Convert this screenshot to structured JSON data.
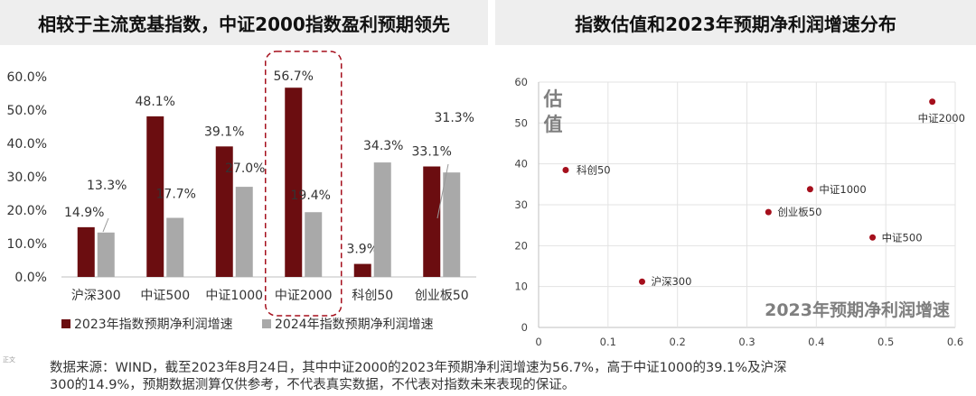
{
  "left_title": "相较于主流宽基指数，中证2000指数盈利预期领先",
  "right_title": "指数估值和2023年预期净利润增速分布",
  "footnote_line1": "数据来源：WIND，截至2023年8月24日，其中中证2000的2023年预期净利润增速为56.7%，高于中证1000的39.1%及沪深",
  "footnote_line2": "300的14.9%，预期数据测算仅供参考，不代表真实数据，不代表对指数未来表现的保证。",
  "side_mark": "正文",
  "colors": {
    "series1": "#6b0d10",
    "series2": "#a9a9a9",
    "dot": "#a50f1c",
    "highlight": "#a50f1c"
  },
  "chart_data": [
    {
      "type": "bar",
      "title": "相较于主流宽基指数，中证2000指数盈利预期领先",
      "categories": [
        "沪深300",
        "中证500",
        "中证1000",
        "中证2000",
        "科创50",
        "创业板50"
      ],
      "series": [
        {
          "name": "2023年指数预期净利润增速",
          "values": [
            14.9,
            48.1,
            39.1,
            56.7,
            3.9,
            33.1
          ]
        },
        {
          "name": "2024年指数预期净利润增速",
          "values": [
            13.3,
            17.7,
            27.0,
            19.4,
            34.3,
            31.3
          ]
        }
      ],
      "data_labels": [
        [
          "14.9%",
          "48.1%",
          "39.1%",
          "56.7%",
          "3.9%",
          "33.1%"
        ],
        [
          "13.3%",
          "17.7%",
          "27.0%",
          "19.4%",
          "34.3%",
          "31.3%"
        ]
      ],
      "ylim": [
        0,
        60
      ],
      "yticks": [
        "0.0%",
        "10.0%",
        "20.0%",
        "30.0%",
        "40.0%",
        "50.0%",
        "60.0%"
      ],
      "highlighted_category": "中证2000",
      "legend_position": "bottom-left",
      "grid": false
    },
    {
      "type": "scatter",
      "title": "指数估值和2023年预期净利润增速分布",
      "xlabel": "2023年预期净利润增速",
      "ylabel": "估值",
      "xlim": [
        0,
        0.6
      ],
      "ylim": [
        0,
        60
      ],
      "xticks": [
        "0",
        "0.1",
        "0.2",
        "0.3",
        "0.4",
        "0.5",
        "0.6"
      ],
      "yticks": [
        "0",
        "10",
        "20",
        "30",
        "40",
        "50",
        "60"
      ],
      "points": [
        {
          "label": "沪深300",
          "x": 0.149,
          "y": 11.2
        },
        {
          "label": "科创50",
          "x": 0.039,
          "y": 38.5
        },
        {
          "label": "创业板50",
          "x": 0.331,
          "y": 28.2
        },
        {
          "label": "中证1000",
          "x": 0.391,
          "y": 33.8
        },
        {
          "label": "中证500",
          "x": 0.481,
          "y": 22.0
        },
        {
          "label": "中证2000",
          "x": 0.567,
          "y": 55.2
        }
      ],
      "grid": true
    }
  ]
}
